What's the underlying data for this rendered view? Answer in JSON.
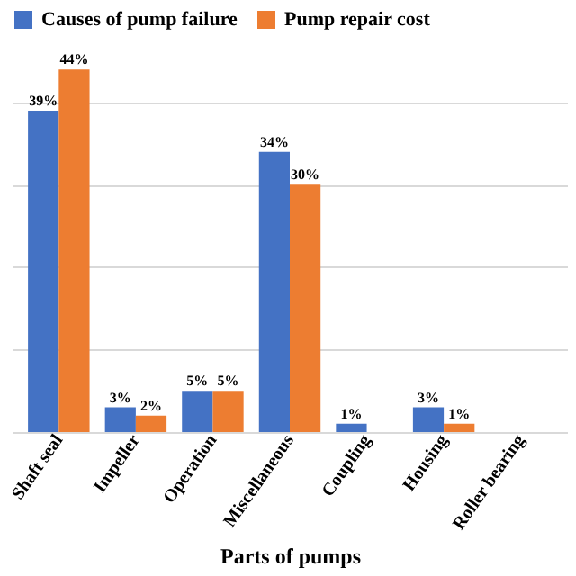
{
  "chart_data": {
    "type": "bar",
    "xlabel": "Parts of pumps",
    "categories": [
      "Shaft seal",
      "Impeller",
      "Operation",
      "Miscellaneous",
      "Coupling",
      "Housing",
      "Roller bearing"
    ],
    "series": [
      {
        "name": "Causes of pump failure",
        "color": "#4472c4",
        "values": [
          39,
          3,
          5,
          34,
          1,
          3,
          null
        ],
        "value_labels": [
          "39%",
          "3%",
          "5%",
          "34%",
          "1%",
          "3%",
          null
        ]
      },
      {
        "name": "Pump repair cost",
        "color": "#ed7d31",
        "values": [
          44,
          2,
          5,
          30,
          null,
          1,
          null
        ],
        "value_labels": [
          "44%",
          "2%",
          "5%",
          "30%",
          null,
          "1%",
          null
        ]
      }
    ],
    "tick_labels": "x",
    "grid": "y",
    "legend": "top"
  }
}
